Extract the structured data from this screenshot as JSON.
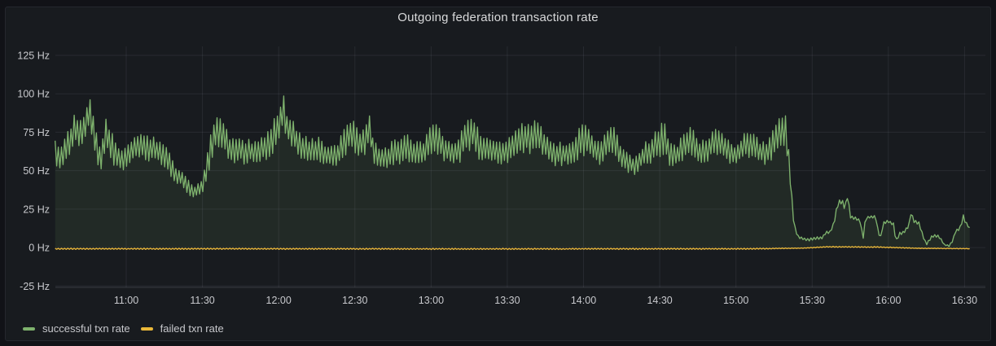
{
  "panel": {
    "title": "Outgoing federation transaction rate"
  },
  "legend": {
    "items": [
      {
        "label": "successful txn rate",
        "color": "#7EB26D"
      },
      {
        "label": "failed txn rate",
        "color": "#EAB839"
      }
    ]
  },
  "colors": {
    "page_bg": "#111217",
    "panel_bg": "#181b1f",
    "grid": "rgba(204,204,220,0.09)",
    "axis_line": "rgba(204,204,220,0.18)",
    "tick_text": "#c8c9cd",
    "title_text": "#d8d9da",
    "series_green": "#7EB26D",
    "series_yellow": "#EAB839"
  },
  "chart_data": {
    "type": "line",
    "title": "Outgoing federation transaction rate",
    "xlabel": "",
    "ylabel": "Hz",
    "grid": true,
    "legend_position": "bottom-left",
    "y_axis": {
      "unit": "Hz",
      "tick_values": [
        125,
        100,
        75,
        50,
        25,
        0,
        -25
      ],
      "tick_labels": [
        "125 Hz",
        "100 Hz",
        "75 Hz",
        "50 Hz",
        "25 Hz",
        "0 Hz",
        "-25 Hz"
      ],
      "range": [
        -25.9,
        130.8
      ]
    },
    "x_axis": {
      "unit": "time-of-day",
      "tick_minutes": [
        660,
        690,
        720,
        750,
        780,
        810,
        840,
        870,
        900,
        930,
        960,
        990
      ],
      "tick_labels": [
        "11:00",
        "11:30",
        "12:00",
        "12:30",
        "13:00",
        "13:30",
        "14:00",
        "14:30",
        "15:00",
        "15:30",
        "16:00",
        "16:30"
      ],
      "range_minutes": [
        632.1,
        998.2
      ]
    },
    "series": [
      {
        "name": "successful txn rate",
        "color": "#7EB26D",
        "fill_to_zero": true,
        "fill_opacity": 0.1,
        "style": "noisy-sawtooth",
        "oscillation_period_min": 1.25,
        "envelope_format": [
          "minutes_of_day",
          "mid_hz",
          "oscillation_amplitude_hz"
        ],
        "envelope": [
          [
            632,
            64,
            10
          ],
          [
            634,
            58,
            8
          ],
          [
            636,
            63,
            10
          ],
          [
            638,
            70,
            11
          ],
          [
            640,
            77,
            12
          ],
          [
            642,
            73,
            10
          ],
          [
            644,
            79,
            9
          ],
          [
            645.5,
            90,
            10
          ],
          [
            647,
            76,
            10
          ],
          [
            649,
            62,
            9
          ],
          [
            650,
            55,
            6
          ],
          [
            652,
            76,
            11
          ],
          [
            654,
            66,
            10
          ],
          [
            656,
            60,
            9
          ],
          [
            658,
            56,
            8
          ],
          [
            660,
            60,
            8
          ],
          [
            662,
            63,
            9
          ],
          [
            664,
            66,
            10
          ],
          [
            666,
            66,
            9
          ],
          [
            668,
            65,
            9
          ],
          [
            670,
            64,
            9
          ],
          [
            672,
            63,
            9
          ],
          [
            674,
            61,
            8
          ],
          [
            676,
            58,
            8
          ],
          [
            677,
            55,
            7
          ],
          [
            679,
            48,
            6
          ],
          [
            681,
            46,
            6
          ],
          [
            683,
            42,
            5
          ],
          [
            685,
            38,
            5
          ],
          [
            687,
            36,
            4
          ],
          [
            689,
            38,
            5
          ],
          [
            690,
            40,
            5
          ],
          [
            691.5,
            50,
            7
          ],
          [
            693,
            62,
            10
          ],
          [
            695,
            73,
            11
          ],
          [
            697,
            76,
            10
          ],
          [
            699,
            72,
            10
          ],
          [
            700,
            66,
            8
          ],
          [
            702,
            63,
            8
          ],
          [
            704,
            64,
            9
          ],
          [
            707,
            62,
            8
          ],
          [
            710,
            63,
            8
          ],
          [
            713,
            64,
            9
          ],
          [
            715,
            66,
            9
          ],
          [
            717,
            70,
            11
          ],
          [
            719,
            75,
            12
          ],
          [
            720,
            78,
            12
          ],
          [
            721,
            86,
            11
          ],
          [
            722,
            87,
            12
          ],
          [
            723,
            79,
            11
          ],
          [
            725,
            74,
            10
          ],
          [
            726,
            72,
            10
          ],
          [
            728,
            68,
            9
          ],
          [
            730,
            65,
            9
          ],
          [
            733,
            63,
            8
          ],
          [
            736,
            64,
            9
          ],
          [
            738,
            61,
            8
          ],
          [
            740,
            60,
            8
          ],
          [
            742,
            59,
            8
          ],
          [
            745,
            65,
            9
          ],
          [
            747,
            73,
            12
          ],
          [
            749,
            74,
            12
          ],
          [
            751,
            70,
            10
          ],
          [
            752,
            67,
            9
          ],
          [
            754,
            68,
            9
          ],
          [
            755,
            78,
            11
          ],
          [
            756,
            79,
            11
          ],
          [
            757,
            64,
            9
          ],
          [
            759,
            60,
            8
          ],
          [
            761,
            57,
            7
          ],
          [
            763,
            58,
            8
          ],
          [
            765,
            62,
            9
          ],
          [
            768,
            64,
            10
          ],
          [
            770,
            66,
            10
          ],
          [
            772,
            63,
            9
          ],
          [
            775,
            61,
            8
          ],
          [
            777,
            62,
            8
          ],
          [
            779,
            68,
            10
          ],
          [
            781,
            71,
            11
          ],
          [
            783,
            70,
            11
          ],
          [
            785,
            64,
            9
          ],
          [
            788,
            62,
            8
          ],
          [
            791,
            62,
            8
          ],
          [
            793,
            72,
            11
          ],
          [
            795,
            75,
            12
          ],
          [
            797,
            74,
            12
          ],
          [
            799,
            65,
            9
          ],
          [
            802,
            64,
            9
          ],
          [
            804,
            63,
            8
          ],
          [
            806,
            62,
            8
          ],
          [
            809,
            62,
            8
          ],
          [
            812,
            66,
            10
          ],
          [
            814,
            70,
            11
          ],
          [
            816,
            72,
            12
          ],
          [
            818,
            72,
            12
          ],
          [
            820,
            72,
            11
          ],
          [
            822,
            73,
            10
          ],
          [
            825,
            66,
            9
          ],
          [
            828,
            61,
            8
          ],
          [
            831,
            61,
            8
          ],
          [
            834,
            61,
            8
          ],
          [
            837,
            64,
            9
          ],
          [
            839,
            70,
            11
          ],
          [
            841,
            70,
            11
          ],
          [
            844,
            64,
            9
          ],
          [
            847,
            62,
            9
          ],
          [
            850,
            70,
            11
          ],
          [
            852,
            71,
            11
          ],
          [
            854,
            62,
            8
          ],
          [
            856,
            58,
            8
          ],
          [
            858,
            55,
            7
          ],
          [
            860,
            53,
            6
          ],
          [
            862,
            57,
            7
          ],
          [
            864,
            61,
            8
          ],
          [
            866,
            62,
            8
          ],
          [
            868,
            66,
            9
          ],
          [
            870,
            70,
            11
          ],
          [
            872,
            70,
            11
          ],
          [
            874,
            61,
            8
          ],
          [
            877,
            60,
            8
          ],
          [
            880,
            68,
            10
          ],
          [
            883,
            69,
            10
          ],
          [
            885,
            63,
            8
          ],
          [
            888,
            62,
            8
          ],
          [
            891,
            68,
            9
          ],
          [
            894,
            69,
            9
          ],
          [
            897,
            62,
            8
          ],
          [
            900,
            60,
            8
          ],
          [
            903,
            66,
            9
          ],
          [
            906,
            67,
            10
          ],
          [
            909,
            62,
            8
          ],
          [
            912,
            61,
            8
          ],
          [
            914,
            65,
            10
          ],
          [
            916,
            73,
            11
          ],
          [
            918,
            75,
            11
          ],
          [
            919.5,
            77,
            10
          ],
          [
            921,
            55,
            6
          ],
          [
            922,
            30,
            4
          ],
          [
            923,
            13,
            2
          ],
          [
            924.5,
            7,
            1
          ],
          [
            926,
            6,
            1
          ],
          [
            928,
            5,
            1
          ],
          [
            931,
            6,
            1
          ],
          [
            934,
            6.5,
            1
          ],
          [
            935.5,
            10,
            1
          ],
          [
            937,
            10,
            1
          ],
          [
            938.5,
            15,
            1.5
          ],
          [
            940,
            28,
            2
          ],
          [
            941.5,
            30,
            2
          ],
          [
            943,
            26,
            2
          ],
          [
            944,
            34,
            2
          ],
          [
            945,
            20,
            1
          ],
          [
            947,
            19,
            1
          ],
          [
            949,
            17,
            1
          ],
          [
            950,
            5,
            1
          ],
          [
            951,
            19,
            1
          ],
          [
            953,
            20,
            1
          ],
          [
            955,
            20,
            1
          ],
          [
            956,
            10,
            1
          ],
          [
            957,
            7,
            1
          ],
          [
            958,
            16,
            1
          ],
          [
            960,
            17,
            1
          ],
          [
            962,
            15,
            1
          ],
          [
            963,
            4,
            1
          ],
          [
            964.5,
            9,
            1
          ],
          [
            966,
            10,
            1
          ],
          [
            968,
            14,
            1
          ],
          [
            969,
            23,
            1
          ],
          [
            970,
            17,
            1
          ],
          [
            972,
            16,
            1
          ],
          [
            973.5,
            8,
            1
          ],
          [
            975,
            2,
            0.5
          ],
          [
            976.5,
            6,
            1
          ],
          [
            978,
            8,
            1
          ],
          [
            980,
            7,
            1
          ],
          [
            982,
            2,
            0.5
          ],
          [
            984,
            1,
            0.5
          ],
          [
            985.5,
            5,
            1
          ],
          [
            986.5,
            11,
            1
          ],
          [
            988,
            12,
            1
          ],
          [
            989.5,
            20,
            1.5
          ],
          [
            990.5,
            16,
            1
          ],
          [
            992,
            13,
            1
          ]
        ]
      },
      {
        "name": "failed txn rate",
        "color": "#EAB839",
        "fill_to_zero": false,
        "fill_opacity": 0,
        "style": "noisy-sawtooth",
        "oscillation_period_min": 1.25,
        "envelope_format": [
          "minutes_of_day",
          "mid_hz",
          "oscillation_amplitude_hz"
        ],
        "envelope": [
          [
            632,
            -0.8,
            0.4
          ],
          [
            700,
            -0.8,
            0.4
          ],
          [
            800,
            -0.9,
            0.4
          ],
          [
            905,
            -0.8,
            0.4
          ],
          [
            926,
            -0.4,
            0.2
          ],
          [
            936,
            0.5,
            0.3
          ],
          [
            956,
            0.3,
            0.3
          ],
          [
            972,
            -0.5,
            0.2
          ],
          [
            992,
            -0.7,
            0.2
          ]
        ]
      }
    ]
  }
}
